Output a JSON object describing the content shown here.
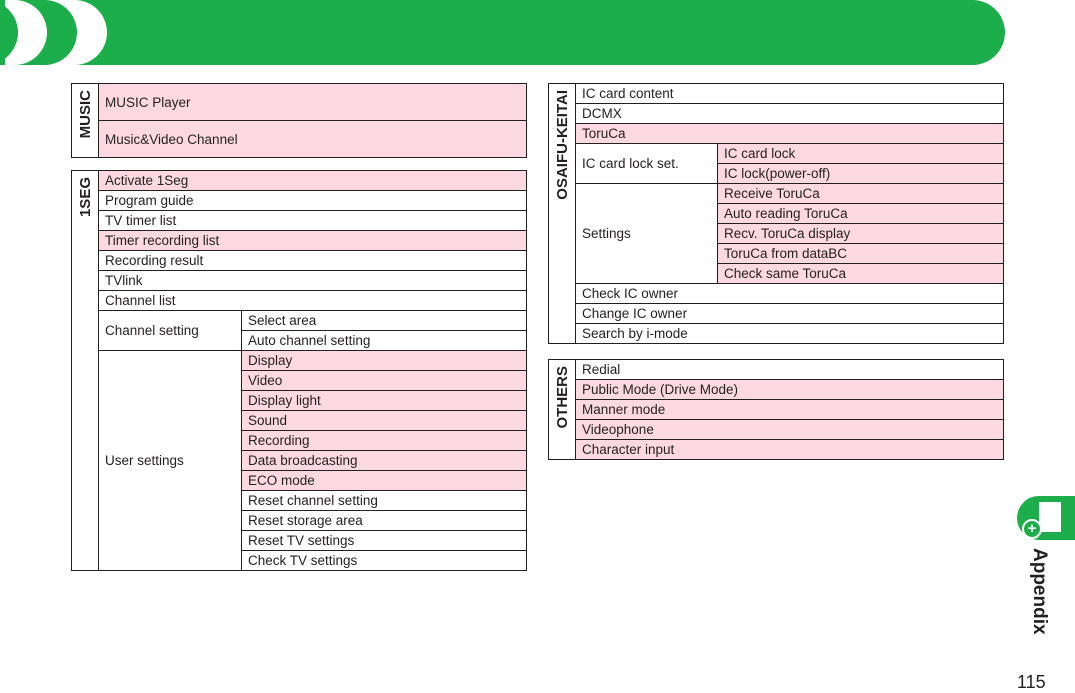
{
  "colors": {
    "green": "#1bae4b",
    "pink": "#fcd9e2"
  },
  "left": [
    {
      "label": "MUSIC",
      "rows": [
        {
          "label": "MUSIC Player",
          "pink": true,
          "tall": true
        },
        {
          "label": "Music&Video Channel",
          "pink": true,
          "tall": true
        }
      ]
    },
    {
      "label": "1SEG",
      "rows": [
        {
          "label": "Activate 1Seg",
          "pink": true
        },
        {
          "label": "Program guide"
        },
        {
          "label": "TV timer list"
        },
        {
          "label": "Timer recording list",
          "pink": true
        },
        {
          "label": "Recording result"
        },
        {
          "label": "TVlink"
        },
        {
          "label": "Channel list"
        },
        {
          "label": "Channel setting",
          "sub": [
            {
              "label": "Select area"
            },
            {
              "label": "Auto channel setting"
            }
          ]
        },
        {
          "label": "User settings",
          "sub": [
            {
              "label": "Display",
              "pink": true
            },
            {
              "label": "Video",
              "pink": true
            },
            {
              "label": "Display light",
              "pink": true
            },
            {
              "label": "Sound",
              "pink": true
            },
            {
              "label": "Recording",
              "pink": true
            },
            {
              "label": "Data broadcasting",
              "pink": true
            },
            {
              "label": "ECO mode",
              "pink": true
            },
            {
              "label": "Reset channel setting"
            },
            {
              "label": "Reset storage area"
            },
            {
              "label": "Reset TV settings"
            },
            {
              "label": "Check TV settings"
            }
          ]
        }
      ]
    }
  ],
  "right": [
    {
      "label": "OSAIFU-KEITAI",
      "rows": [
        {
          "label": "IC card content"
        },
        {
          "label": "DCMX"
        },
        {
          "label": "ToruCa",
          "pink": true
        },
        {
          "label": "IC card lock set.",
          "sub": [
            {
              "label": "IC card lock",
              "pink": true
            },
            {
              "label": "IC lock(power-off)",
              "pink": true
            }
          ]
        },
        {
          "label": "Settings",
          "sub": [
            {
              "label": "Receive ToruCa",
              "pink": true
            },
            {
              "label": "Auto reading ToruCa",
              "pink": true
            },
            {
              "label": "Recv. ToruCa display",
              "pink": true
            },
            {
              "label": "ToruCa from dataBC",
              "pink": true
            },
            {
              "label": "Check same ToruCa",
              "pink": true
            }
          ]
        },
        {
          "label": "Check IC owner"
        },
        {
          "label": "Change IC owner"
        },
        {
          "label": "Search by i-mode"
        }
      ]
    },
    {
      "label": "OTHERS",
      "rows": [
        {
          "label": "Redial"
        },
        {
          "label": "Public Mode (Drive Mode)",
          "pink": true
        },
        {
          "label": "Manner mode",
          "pink": true
        },
        {
          "label": "Videophone",
          "pink": true
        },
        {
          "label": "Character input",
          "pink": true
        }
      ]
    }
  ],
  "side_tab": {
    "label": "Appendix",
    "icon": "appendix-plus-icon"
  },
  "page_number": "115"
}
